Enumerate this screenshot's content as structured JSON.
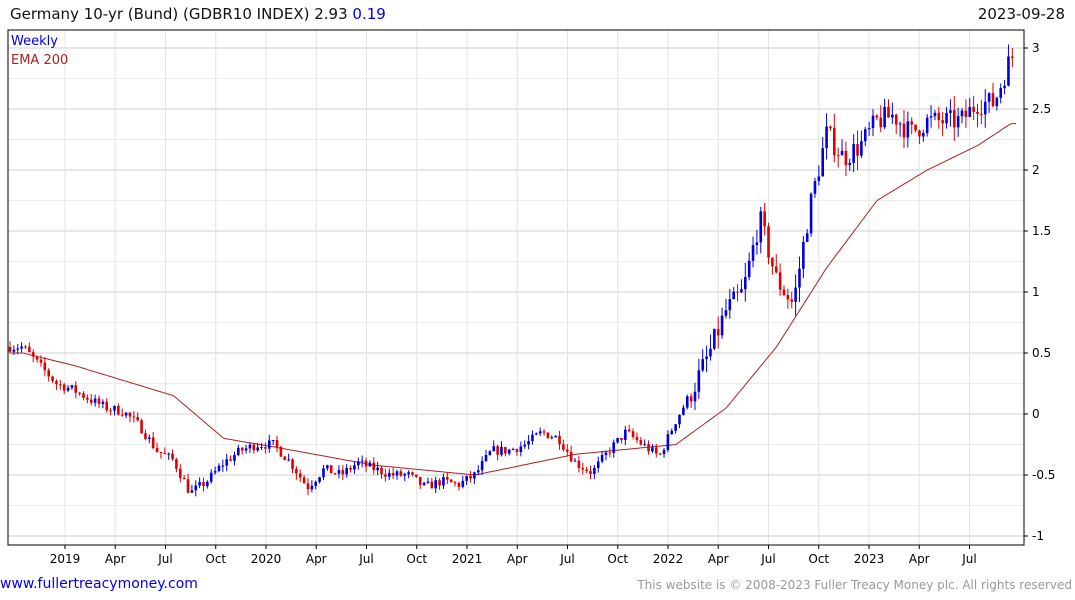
{
  "header": {
    "title": "Germany 10-yr (Bund)  (GDBR10 INDEX) 2.93",
    "change": "0.19",
    "date": "2023-09-28"
  },
  "footer": {
    "site": "www.fullertreacymoney.com",
    "copyright": "This website is © 2008-2023 Fuller Treacy Money plc. All rights reserved"
  },
  "colors": {
    "up": "#0000dd",
    "down": "#dd0000",
    "ema": "#aa2222",
    "grid": "#dddddd"
  },
  "chart_data": {
    "type": "candlestick",
    "title": "Germany 10-yr (Bund)  (GDBR10 INDEX) 2.93 0.19",
    "legend": [
      "Weekly",
      "EMA 200"
    ],
    "legend_placement": "top-left",
    "ylim": [
      -1,
      3
    ],
    "yticks": [
      3,
      2.5,
      2,
      1.5,
      1,
      0.5,
      0,
      -0.5,
      -1
    ],
    "ytick_labels": [
      "3",
      "2.5",
      "2",
      "1.5",
      "1",
      "0.5",
      "0",
      "-0.5",
      "-1"
    ],
    "xticks": [
      "2019",
      "Apr",
      "Jul",
      "Oct",
      "2020",
      "Apr",
      "Jul",
      "Oct",
      "2021",
      "Apr",
      "Jul",
      "Oct",
      "2022",
      "Apr",
      "Jul",
      "Oct",
      "2023",
      "Apr",
      "Jul"
    ],
    "xtick_months": [
      [
        2019,
        1
      ],
      [
        2019,
        4
      ],
      [
        2019,
        7
      ],
      [
        2019,
        10
      ],
      [
        2020,
        1
      ],
      [
        2020,
        4
      ],
      [
        2020,
        7
      ],
      [
        2020,
        10
      ],
      [
        2021,
        1
      ],
      [
        2021,
        4
      ],
      [
        2021,
        7
      ],
      [
        2021,
        10
      ],
      [
        2022,
        1
      ],
      [
        2022,
        4
      ],
      [
        2022,
        7
      ],
      [
        2022,
        10
      ],
      [
        2023,
        1
      ],
      [
        2023,
        4
      ],
      [
        2023,
        7
      ]
    ],
    "close_anchors": [
      [
        "2018-10",
        0.55
      ],
      [
        "2018-11",
        0.4
      ],
      [
        "2018-12",
        0.25
      ],
      [
        "2019-01",
        0.2
      ],
      [
        "2019-02",
        0.12
      ],
      [
        "2019-03",
        0.05
      ],
      [
        "2019-04",
        0.02
      ],
      [
        "2019-05",
        -0.1
      ],
      [
        "2019-06",
        -0.3
      ],
      [
        "2019-07",
        -0.38
      ],
      [
        "2019-08",
        -0.65
      ],
      [
        "2019-09",
        -0.55
      ],
      [
        "2019-10",
        -0.4
      ],
      [
        "2019-11",
        -0.3
      ],
      [
        "2019-12",
        -0.25
      ],
      [
        "2020-01",
        -0.25
      ],
      [
        "2020-02",
        -0.4
      ],
      [
        "2020-03",
        -0.6
      ],
      [
        "2020-04",
        -0.45
      ],
      [
        "2020-05",
        -0.5
      ],
      [
        "2020-06",
        -0.4
      ],
      [
        "2020-07",
        -0.45
      ],
      [
        "2020-08",
        -0.5
      ],
      [
        "2020-09",
        -0.5
      ],
      [
        "2020-10",
        -0.6
      ],
      [
        "2020-11",
        -0.55
      ],
      [
        "2020-12",
        -0.58
      ],
      [
        "2021-01",
        -0.5
      ],
      [
        "2021-02",
        -0.3
      ],
      [
        "2021-03",
        -0.3
      ],
      [
        "2021-04",
        -0.25
      ],
      [
        "2021-05",
        -0.15
      ],
      [
        "2021-06",
        -0.2
      ],
      [
        "2021-07",
        -0.4
      ],
      [
        "2021-08",
        -0.48
      ],
      [
        "2021-09",
        -0.3
      ],
      [
        "2021-10",
        -0.15
      ],
      [
        "2021-11",
        -0.25
      ],
      [
        "2021-12",
        -0.35
      ],
      [
        "2022-01",
        -0.05
      ],
      [
        "2022-02",
        0.2
      ],
      [
        "2022-03",
        0.5
      ],
      [
        "2022-04",
        0.85
      ],
      [
        "2022-05",
        1.0
      ],
      [
        "2022-06",
        1.6
      ],
      [
        "2022-07",
        1.1
      ],
      [
        "2022-08",
        0.9
      ],
      [
        "2022-09",
        1.7
      ],
      [
        "2022-10",
        2.3
      ],
      [
        "2022-11",
        2.1
      ],
      [
        "2022-12",
        2.2
      ],
      [
        "2023-01",
        2.4
      ],
      [
        "2023-02",
        2.45
      ],
      [
        "2023-03",
        2.3
      ],
      [
        "2023-04",
        2.4
      ],
      [
        "2023-05",
        2.4
      ],
      [
        "2023-06",
        2.4
      ],
      [
        "2023-07",
        2.55
      ],
      [
        "2023-08",
        2.55
      ],
      [
        "2023-09",
        2.93
      ]
    ],
    "ema_anchors": [
      [
        "2018-10",
        0.5
      ],
      [
        "2019-01",
        0.4
      ],
      [
        "2019-07",
        0.15
      ],
      [
        "2019-10",
        -0.2
      ],
      [
        "2020-01",
        -0.27
      ],
      [
        "2020-07",
        -0.42
      ],
      [
        "2021-01",
        -0.5
      ],
      [
        "2021-07",
        -0.33
      ],
      [
        "2022-01",
        -0.25
      ],
      [
        "2022-04",
        0.05
      ],
      [
        "2022-07",
        0.55
      ],
      [
        "2022-10",
        1.2
      ],
      [
        "2023-01",
        1.75
      ],
      [
        "2023-04",
        2.0
      ],
      [
        "2023-07",
        2.2
      ],
      [
        "2023-09",
        2.38
      ]
    ]
  }
}
